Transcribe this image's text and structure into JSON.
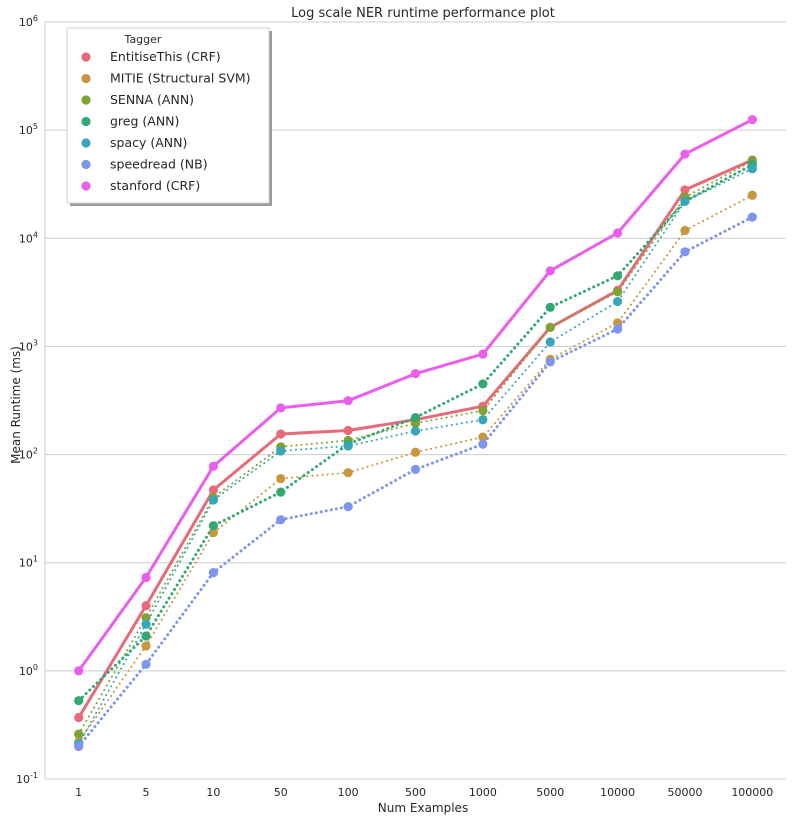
{
  "chart_data": {
    "type": "line",
    "title": "Log scale NER runtime performance plot",
    "xlabel": "Num Examples",
    "ylabel": "Mean Runtime (ms)",
    "yscale": "log",
    "ylim": [
      0.1,
      1000000
    ],
    "y_ticks": [
      {
        "base": "10",
        "exp": "-1"
      },
      {
        "base": "10",
        "exp": "0"
      },
      {
        "base": "10",
        "exp": "1"
      },
      {
        "base": "10",
        "exp": "2"
      },
      {
        "base": "10",
        "exp": "3"
      },
      {
        "base": "10",
        "exp": "4"
      },
      {
        "base": "10",
        "exp": "5"
      },
      {
        "base": "10",
        "exp": "6"
      }
    ],
    "categories": [
      "1",
      "5",
      "10",
      "50",
      "100",
      "500",
      "1000",
      "5000",
      "10000",
      "50000",
      "100000"
    ],
    "grid": "horizontal",
    "legend": {
      "title": "Tagger",
      "placement": "top-left"
    },
    "series": [
      {
        "name": "EntitiseThis (CRF)",
        "color": "#e8697a",
        "style": "solid",
        "width": 3,
        "values": [
          0.37,
          4.0,
          47,
          155,
          167,
          210,
          280,
          1500,
          3300,
          28000,
          53000
        ]
      },
      {
        "name": "MITIE (Structural SVM)",
        "color": "#c8963e",
        "style": "dotted",
        "width": 2,
        "values": [
          0.22,
          1.7,
          19,
          60,
          68,
          105,
          145,
          760,
          1650,
          11800,
          25000
        ]
      },
      {
        "name": "SENNA (ANN)",
        "color": "#7fa331",
        "style": "dotted",
        "width": 2,
        "values": [
          0.26,
          3.1,
          40,
          118,
          135,
          195,
          255,
          1500,
          3200,
          24000,
          52000
        ]
      },
      {
        "name": "greg (ANN)",
        "color": "#33a873",
        "style": "dotted",
        "width": 3,
        "values": [
          0.53,
          2.1,
          22,
          45,
          125,
          220,
          450,
          2300,
          4500,
          22000,
          48000
        ]
      },
      {
        "name": "spacy (ANN)",
        "color": "#37a6b8",
        "style": "dotted",
        "width": 2,
        "values": [
          0.21,
          2.7,
          38,
          108,
          120,
          165,
          210,
          1100,
          2600,
          22000,
          44000
        ]
      },
      {
        "name": "speedread (NB)",
        "color": "#7e95ee",
        "style": "dotted",
        "width": 3,
        "values": [
          0.2,
          1.15,
          8.1,
          25,
          33,
          73,
          125,
          720,
          1450,
          7500,
          15700
        ]
      },
      {
        "name": "stanford (CRF)",
        "color": "#ea5eec",
        "style": "solid",
        "width": 3,
        "values": [
          1.0,
          7.3,
          78,
          270,
          315,
          560,
          850,
          5000,
          11200,
          60000,
          125000
        ]
      }
    ]
  }
}
